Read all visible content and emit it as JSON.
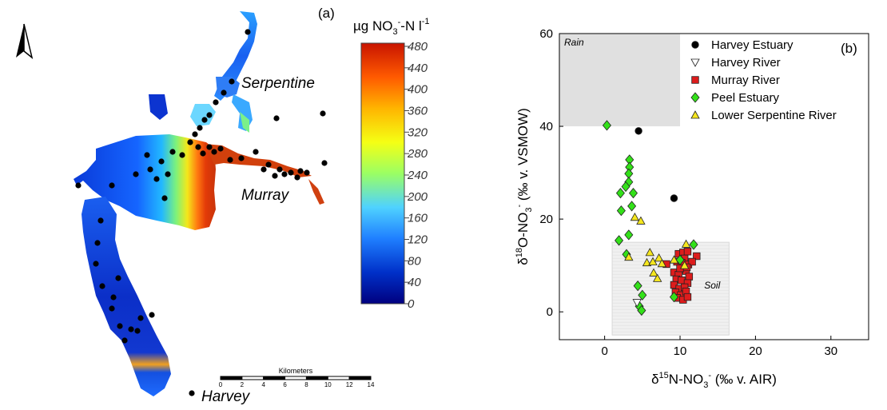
{
  "map": {
    "panel_label": "(a)",
    "colorbar": {
      "title_main": "µg NO",
      "title_sub": "3",
      "title_sup": "-",
      "title_rest": "-N l",
      "title_sup2": "-1",
      "ticks": [
        "480",
        "440",
        "400",
        "360",
        "320",
        "280",
        "240",
        "200",
        "160",
        "120",
        "80",
        "40",
        "0"
      ],
      "colors": [
        "#00007f",
        "#0030c8",
        "#1f7fff",
        "#4fd2ff",
        "#9bff63",
        "#f5ff14",
        "#ffb400",
        "#ff5a00",
        "#c81400"
      ]
    },
    "labels": {
      "serpentine": "Serpentine",
      "murray": "Murray",
      "harvey": "Harvey"
    },
    "scalebar": {
      "title": "Kilometers",
      "ticks": [
        "0",
        "2",
        "4",
        "6",
        "8",
        "10",
        "12",
        "14"
      ]
    },
    "north_arrow_icon": "north-arrow-icon"
  },
  "chart_data": {
    "type": "scatter",
    "panel_label": "(b)",
    "xlabel": "δ15N-NO3- (‰ v. AIR)",
    "ylabel": "δ18O-NO3- (‰ v. VSMOW)",
    "xlim": [
      -6,
      35
    ],
    "ylim": [
      -6,
      60
    ],
    "xticks": [
      0,
      10,
      20,
      30
    ],
    "yticks": [
      0,
      20,
      40,
      60
    ],
    "regions": [
      {
        "name": "Rain",
        "x": [
          -6,
          10
        ],
        "y": [
          40,
          60
        ],
        "color": "#e0e0e0"
      },
      {
        "name": "Soil",
        "x": [
          1,
          16.5
        ],
        "y": [
          -5,
          15
        ],
        "color": "#f0f0f0"
      }
    ],
    "legend_position": "top-right",
    "series": [
      {
        "name": "Harvey Estuary",
        "marker": "circle",
        "color": "#000000",
        "points": [
          [
            4.5,
            39
          ],
          [
            9.2,
            24.5
          ]
        ]
      },
      {
        "name": "Harvey River",
        "marker": "triangle-down",
        "color": "#ffffff",
        "points": [
          [
            4.3,
            2
          ]
        ]
      },
      {
        "name": "Murray River",
        "marker": "square",
        "color": "#dd1c1c",
        "points": [
          [
            9.8,
            12.5
          ],
          [
            10.4,
            12.8
          ],
          [
            11.0,
            13.0
          ],
          [
            10.6,
            11.5
          ],
          [
            9.6,
            10.8
          ],
          [
            10.2,
            10.6
          ],
          [
            11.1,
            10.2
          ],
          [
            12.2,
            12.0
          ],
          [
            11.6,
            10.8
          ],
          [
            8.2,
            10.3
          ],
          [
            9.2,
            8.5
          ],
          [
            9.8,
            8.0
          ],
          [
            10.8,
            8.8
          ],
          [
            11.2,
            7.6
          ],
          [
            9.5,
            7.0
          ],
          [
            10.2,
            6.8
          ],
          [
            11.0,
            6.2
          ],
          [
            9.2,
            5.8
          ],
          [
            9.9,
            5.0
          ],
          [
            10.6,
            5.3
          ],
          [
            9.4,
            4.2
          ],
          [
            10.1,
            3.6
          ],
          [
            10.8,
            4.4
          ],
          [
            9.6,
            3.0
          ],
          [
            10.4,
            2.6
          ],
          [
            11.0,
            3.2
          ],
          [
            10.0,
            9.4
          ],
          [
            10.9,
            9.6
          ]
        ]
      },
      {
        "name": "Peel Estuary",
        "marker": "diamond",
        "color": "#33e019",
        "points": [
          [
            0.3,
            40.2
          ],
          [
            3.3,
            32.8
          ],
          [
            3.3,
            31.2
          ],
          [
            3.2,
            29.8
          ],
          [
            3.2,
            28.0
          ],
          [
            2.8,
            27.0
          ],
          [
            2.1,
            25.6
          ],
          [
            3.8,
            25.6
          ],
          [
            2.2,
            21.8
          ],
          [
            3.6,
            22.8
          ],
          [
            3.2,
            16.6
          ],
          [
            1.9,
            15.4
          ],
          [
            2.9,
            12.4
          ],
          [
            4.4,
            5.6
          ],
          [
            5.0,
            3.6
          ],
          [
            4.6,
            1.2
          ],
          [
            4.9,
            0.3
          ],
          [
            9.2,
            3.2
          ],
          [
            10.0,
            11.2
          ],
          [
            11.8,
            14.5
          ]
        ]
      },
      {
        "name": "Lower Serpentine River",
        "marker": "triangle-up",
        "color": "#f5e61e",
        "points": [
          [
            4.0,
            20.4
          ],
          [
            4.8,
            19.6
          ],
          [
            3.2,
            11.8
          ],
          [
            5.6,
            10.6
          ],
          [
            6.4,
            10.8
          ],
          [
            6.0,
            12.8
          ],
          [
            7.2,
            11.6
          ],
          [
            7.6,
            10.4
          ],
          [
            6.5,
            8.4
          ],
          [
            7.0,
            7.2
          ],
          [
            10.8,
            14.6
          ],
          [
            9.2,
            11.2
          ],
          [
            10.6,
            10.0
          ]
        ]
      }
    ],
    "annotations": {
      "rain": "Rain",
      "soil": "Soil"
    }
  }
}
